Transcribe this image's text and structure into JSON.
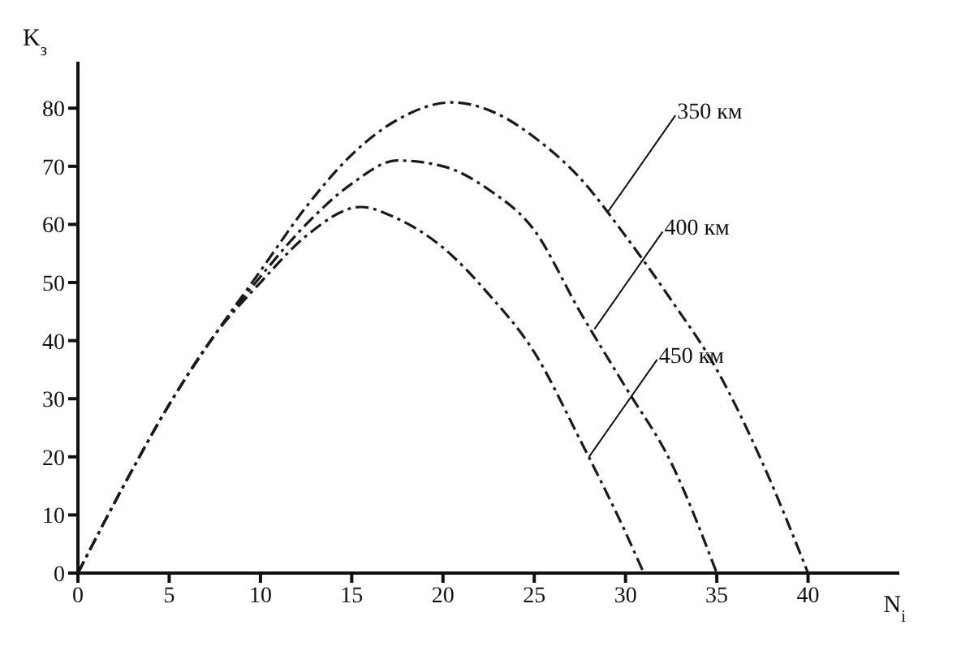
{
  "chart_data": {
    "type": "line",
    "xlabel": "N$_{i}$",
    "ylabel": "K$_{з}$",
    "xlim": [
      0,
      45
    ],
    "ylim": [
      0,
      88
    ],
    "xticks": [
      0,
      5,
      10,
      15,
      20,
      25,
      30,
      35,
      40
    ],
    "yticks": [
      0,
      10,
      20,
      30,
      40,
      50,
      60,
      70,
      80
    ],
    "grid": false,
    "legend": false,
    "marker": "none",
    "line_style": "dashed",
    "series": [
      {
        "color": "#1a1a1a",
        "x": [
          0,
          2.5,
          5,
          7.5,
          10,
          12.5,
          15,
          17.5,
          20.5,
          23,
          25,
          27.5,
          30,
          32.5,
          35,
          37.5,
          40
        ],
        "values": [
          0,
          15,
          29,
          41,
          52,
          63,
          72,
          78,
          81,
          79,
          75,
          68,
          58,
          47,
          35,
          19,
          0
        ]
      },
      {
        "color": "#1a1a1a",
        "x": [
          0,
          2.5,
          5,
          7.5,
          10,
          12.5,
          15,
          17.5,
          20,
          22.5,
          25,
          27.5,
          30,
          32.5,
          35
        ],
        "values": [
          0,
          15,
          29,
          41,
          51,
          60,
          67,
          71,
          70,
          66,
          59,
          45,
          32,
          19,
          0
        ]
      },
      {
        "color": "#1a1a1a",
        "x": [
          0,
          2.5,
          5,
          7.5,
          10,
          12.5,
          15.5,
          17.5,
          20,
          22.5,
          25,
          27.5,
          30,
          31
        ],
        "values": [
          0,
          15,
          29,
          41,
          50,
          58,
          63,
          61,
          56,
          48,
          38,
          23,
          7,
          0
        ]
      }
    ],
    "annotations": [
      {
        "text": "350 км",
        "x": 29,
        "y": 62
      },
      {
        "text": "400 км",
        "x": 28.3,
        "y": 42
      },
      {
        "text": "450 км",
        "x": 28,
        "y": 20
      }
    ]
  }
}
